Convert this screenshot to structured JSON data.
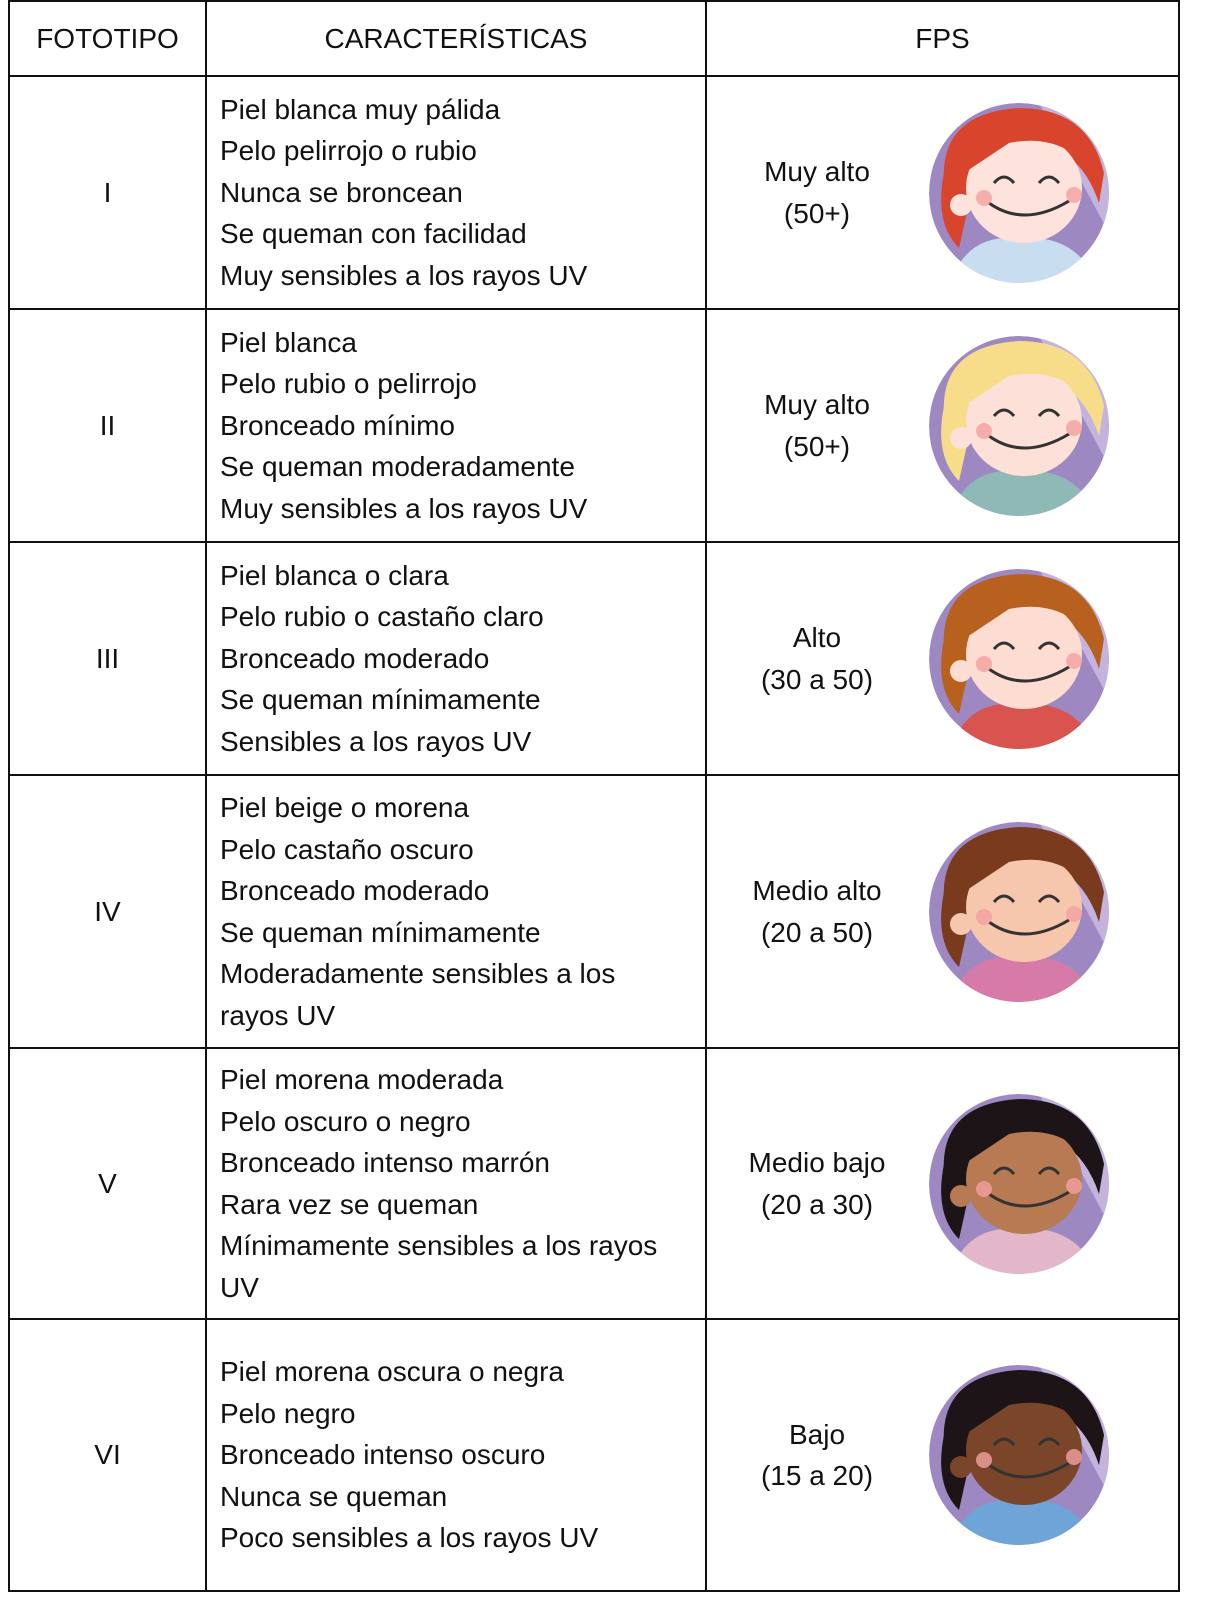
{
  "table": {
    "header": [
      "FOTOTIPO",
      "CARACTERÍSTICAS",
      "FPS"
    ],
    "rows": [
      {
        "fototipo": "I",
        "caracteristicas": [
          "Piel blanca muy pálida",
          "Pelo pelirrojo o rubio",
          "Nunca se broncean",
          "Se queman con facilidad",
          "Muy sensibles a los rayos UV"
        ],
        "fps": [
          "Muy alto",
          "(50+)"
        ]
      },
      {
        "fototipo": "II",
        "caracteristicas": [
          "Piel blanca",
          "Pelo rubio o pelirrojo",
          "Bronceado mínimo",
          "Se queman moderadamente",
          "Muy sensibles a los rayos UV"
        ],
        "fps": [
          "Muy alto",
          "(50+)"
        ]
      },
      {
        "fototipo": "III",
        "caracteristicas": [
          "Piel blanca o clara",
          "Pelo rubio o castaño claro",
          "Bronceado moderado",
          "Se queman mínimamente",
          "Sensibles a los rayos UV"
        ],
        "fps": [
          "Alto",
          "(30 a 50)"
        ]
      },
      {
        "fototipo": "IV",
        "caracteristicas": [
          "Piel beige o morena",
          "Pelo castaño oscuro",
          "Bronceado moderado",
          "Se queman mínimamente",
          "Moderadamente sensibles a los rayos UV"
        ],
        "fps": [
          "Medio alto",
          "(20 a 50)"
        ]
      },
      {
        "fototipo": "V",
        "caracteristicas": [
          "Piel morena moderada",
          "Pelo oscuro o negro",
          "Bronceado intenso marrón",
          "Rara vez se queman",
          "Mínimamente sensibles a los rayos UV"
        ],
        "fps": [
          "Medio bajo",
          "(20 a 30)"
        ]
      },
      {
        "fototipo": "VI",
        "caracteristicas": [
          "Piel morena oscura o negra",
          "Pelo negro",
          "Bronceado intenso oscuro",
          "Nunca se queman",
          "Poco sensibles a los rayos UV"
        ],
        "fps": [
          "Bajo",
          "(15 a 20)"
        ]
      }
    ]
  }
}
